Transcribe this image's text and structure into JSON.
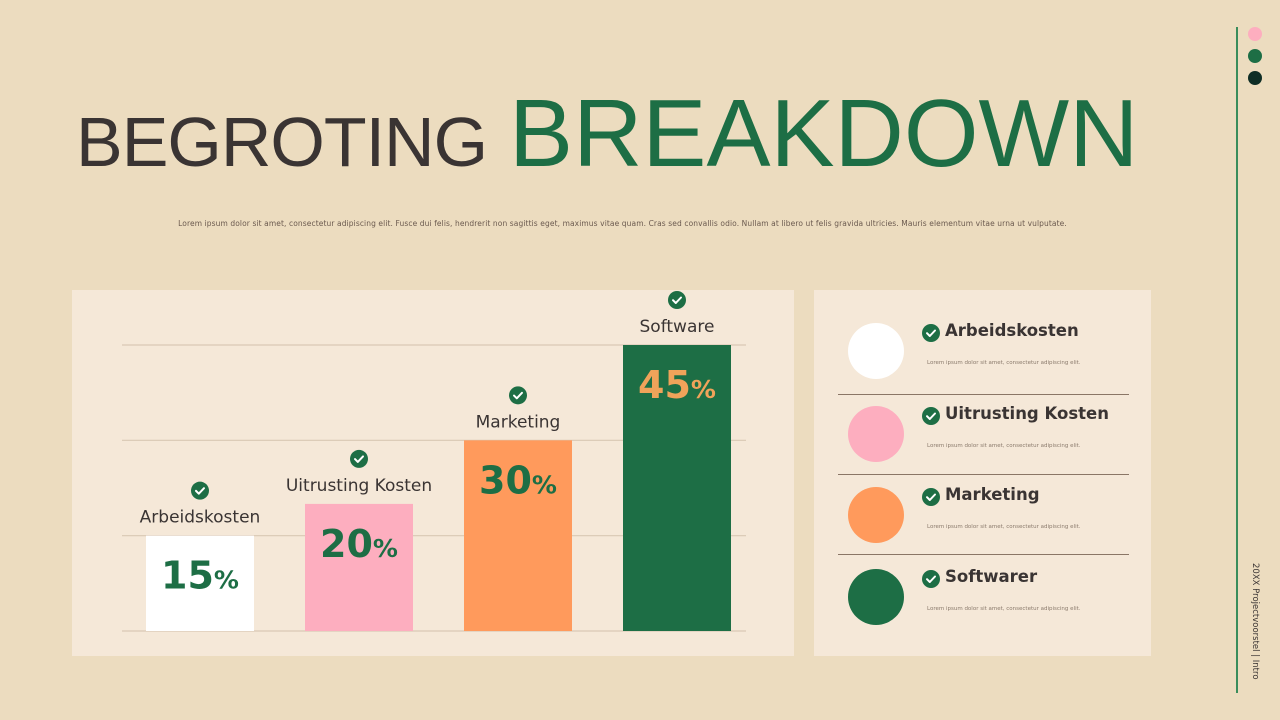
{
  "title": {
    "part1": "BEGROTING",
    "part2": "BREAKDOWN"
  },
  "subtitle": "Lorem ipsum dolor sit amet, consectetur adipiscing elit. Fusce dui felis, hendrerit non sagittis eget, maximus vitae quam. Cras sed convallis odio. Nullam at libero ut felis gravida ultricies. Mauris elementum vitae urna ut vulputate.",
  "colors": {
    "background": "#ecdcbf",
    "panel": "#f5e8d8",
    "green": "#1d6e45",
    "pink": "#fdaebf",
    "orange": "#ff9a5c",
    "white": "#ffffff",
    "dark": "#3a3433",
    "value_orange": "#f0a35a"
  },
  "chart_data": {
    "type": "bar",
    "categories": [
      "Arbeidskosten",
      "Uitrusting Kosten",
      "Marketing",
      "Software"
    ],
    "values": [
      15,
      20,
      30,
      45
    ],
    "value_labels": [
      "15",
      "20",
      "30",
      "45"
    ],
    "value_suffix": "%",
    "bar_colors": [
      "#ffffff",
      "#fdaebf",
      "#ff9a5c",
      "#1d6e45"
    ],
    "value_colors": [
      "#1d6e45",
      "#1d6e45",
      "#1d6e45",
      "#f0a35a"
    ],
    "ylim": [
      0,
      45
    ],
    "grid": true,
    "icon": "check-circle-icon"
  },
  "legend": {
    "items": [
      {
        "label": "Arbeidskosten",
        "desc": "Lorem ipsum dolor sit amet, consectetur adipiscing elit.",
        "color": "#ffffff"
      },
      {
        "label": "Uitrusting Kosten",
        "desc": "Lorem ipsum dolor sit amet, consectetur adipiscing elit.",
        "color": "#fdaebf"
      },
      {
        "label": "Marketing",
        "desc": "Lorem ipsum dolor sit amet, consectetur adipiscing elit.",
        "color": "#ff9a5c"
      },
      {
        "label": "Softwarer",
        "desc": "Lorem ipsum dolor sit amet, consectetur adipiscing elit.",
        "color": "#1d6e45"
      }
    ]
  },
  "sidebar": {
    "text": "20XX Projectvoorstel  |  Intro",
    "dots": [
      "#fdaebf",
      "#1d6e45",
      "#0f2e26"
    ]
  }
}
